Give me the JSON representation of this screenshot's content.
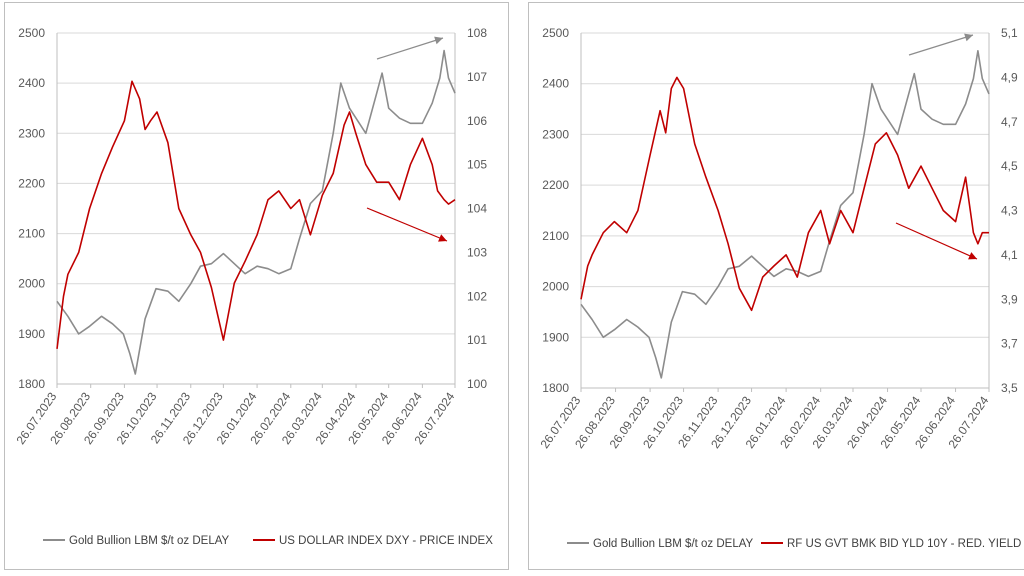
{
  "colors": {
    "gold": "#8c8c8c",
    "secondary": "#c00000",
    "grid": "#d9d9d9",
    "axis": "#bfbfbf"
  },
  "chart_data": [
    {
      "type": "line",
      "title": "",
      "x_tick_labels": [
        "26.07.2023",
        "26.08.2023",
        "26.09.2023",
        "26.10.2023",
        "26.11.2023",
        "26.12.2023",
        "26.01.2024",
        "26.02.2024",
        "26.03.2024",
        "26.04.2024",
        "26.05.2024",
        "26.06.2024",
        "26.07.2024"
      ],
      "y_left": {
        "range": [
          1800,
          2500
        ],
        "ticks": [
          "1800",
          "1900",
          "2000",
          "2100",
          "2200",
          "2300",
          "2400",
          "2500"
        ]
      },
      "y_right": {
        "range": [
          100,
          108
        ],
        "ticks": [
          "100",
          "101",
          "102",
          "103",
          "104",
          "105",
          "106",
          "107",
          "108"
        ]
      },
      "grid": true,
      "legend_position": "bottom",
      "series": [
        {
          "name": "Gold Bullion LBM $/t oz DELAY",
          "axis": "left",
          "color": "#8c8c8c",
          "x": [
            "26.07.2023",
            "05.08.2023",
            "15.08.2023",
            "25.08.2023",
            "05.09.2023",
            "15.09.2023",
            "25.09.2023",
            "01.10.2023",
            "06.10.2023",
            "15.10.2023",
            "25.10.2023",
            "05.11.2023",
            "15.11.2023",
            "26.11.2023",
            "05.12.2023",
            "15.12.2023",
            "26.12.2023",
            "05.01.2024",
            "15.01.2024",
            "26.01.2024",
            "05.02.2024",
            "15.02.2024",
            "26.02.2024",
            "05.03.2024",
            "15.03.2024",
            "26.03.2024",
            "05.04.2024",
            "12.04.2024",
            "20.04.2024",
            "26.04.2024",
            "05.05.2024",
            "15.05.2024",
            "20.05.2024",
            "26.05.2024",
            "05.06.2024",
            "15.06.2024",
            "26.06.2024",
            "05.07.2024",
            "12.07.2024",
            "16.07.2024",
            "20.07.2024",
            "26.07.2024"
          ],
          "y": [
            1965,
            1935,
            1900,
            1915,
            1935,
            1920,
            1900,
            1860,
            1820,
            1930,
            1990,
            1985,
            1965,
            2000,
            2035,
            2040,
            2060,
            2040,
            2020,
            2035,
            2030,
            2020,
            2030,
            2090,
            2160,
            2185,
            2300,
            2400,
            2350,
            2330,
            2300,
            2380,
            2420,
            2350,
            2330,
            2320,
            2320,
            2360,
            2410,
            2465,
            2410,
            2380
          ]
        },
        {
          "name": "US DOLLAR INDEX DXY - PRICE INDEX",
          "axis": "right",
          "color": "#c00000",
          "x": [
            "26.07.2023",
            "01.08.2023",
            "05.08.2023",
            "15.08.2023",
            "25.08.2023",
            "05.09.2023",
            "15.09.2023",
            "26.09.2023",
            "03.10.2023",
            "10.10.2023",
            "15.10.2023",
            "20.10.2023",
            "26.10.2023",
            "05.11.2023",
            "15.11.2023",
            "26.11.2023",
            "05.12.2023",
            "15.12.2023",
            "26.12.2023",
            "05.01.2024",
            "15.01.2024",
            "26.01.2024",
            "05.02.2024",
            "15.02.2024",
            "26.02.2024",
            "05.03.2024",
            "15.03.2024",
            "26.03.2024",
            "05.04.2024",
            "15.04.2024",
            "20.04.2024",
            "26.04.2024",
            "05.05.2024",
            "15.05.2024",
            "26.05.2024",
            "05.06.2024",
            "15.06.2024",
            "26.06.2024",
            "05.07.2024",
            "10.07.2024",
            "16.07.2024",
            "20.07.2024",
            "26.07.2024"
          ],
          "y": [
            100.8,
            102.0,
            102.5,
            103.0,
            104.0,
            104.8,
            105.4,
            106.0,
            106.9,
            106.5,
            105.8,
            106.0,
            106.2,
            105.5,
            104.0,
            103.4,
            103.0,
            102.2,
            101.0,
            102.3,
            102.8,
            103.4,
            104.2,
            104.4,
            104.0,
            104.2,
            103.4,
            104.3,
            104.8,
            105.9,
            106.2,
            105.7,
            105.0,
            104.6,
            104.6,
            104.2,
            105.0,
            105.6,
            105.0,
            104.4,
            104.2,
            104.1,
            104.2
          ]
        }
      ],
      "annotations": [
        {
          "type": "arrow",
          "color": "#8c8c8c",
          "direction": "up-right"
        },
        {
          "type": "arrow",
          "color": "#c00000",
          "direction": "down-right"
        }
      ]
    },
    {
      "type": "line",
      "title": "",
      "x_tick_labels": [
        "26.07.2023",
        "26.08.2023",
        "26.09.2023",
        "26.10.2023",
        "26.11.2023",
        "26.12.2023",
        "26.01.2024",
        "26.02.2024",
        "26.03.2024",
        "26.04.2024",
        "26.05.2024",
        "26.06.2024",
        "26.07.2024"
      ],
      "y_left": {
        "range": [
          1800,
          2500
        ],
        "ticks": [
          "1800",
          "1900",
          "2000",
          "2100",
          "2200",
          "2300",
          "2400",
          "2500"
        ]
      },
      "y_right": {
        "range": [
          3.5,
          5.1
        ],
        "ticks": [
          "3,5",
          "3,7",
          "3,9",
          "4,1",
          "4,3",
          "4,5",
          "4,7",
          "4,9",
          "5,1"
        ]
      },
      "grid": true,
      "legend_position": "bottom",
      "series": [
        {
          "name": "Gold Bullion LBM $/t oz DELAY",
          "axis": "left",
          "color": "#8c8c8c",
          "x": [
            "26.07.2023",
            "05.08.2023",
            "15.08.2023",
            "25.08.2023",
            "05.09.2023",
            "15.09.2023",
            "25.09.2023",
            "01.10.2023",
            "06.10.2023",
            "15.10.2023",
            "25.10.2023",
            "05.11.2023",
            "15.11.2023",
            "26.11.2023",
            "05.12.2023",
            "15.12.2023",
            "26.12.2023",
            "05.01.2024",
            "15.01.2024",
            "26.01.2024",
            "05.02.2024",
            "15.02.2024",
            "26.02.2024",
            "05.03.2024",
            "15.03.2024",
            "26.03.2024",
            "05.04.2024",
            "12.04.2024",
            "20.04.2024",
            "26.04.2024",
            "05.05.2024",
            "15.05.2024",
            "20.05.2024",
            "26.05.2024",
            "05.06.2024",
            "15.06.2024",
            "26.06.2024",
            "05.07.2024",
            "12.07.2024",
            "16.07.2024",
            "20.07.2024",
            "26.07.2024"
          ],
          "y": [
            1965,
            1935,
            1900,
            1915,
            1935,
            1920,
            1900,
            1860,
            1820,
            1930,
            1990,
            1985,
            1965,
            2000,
            2035,
            2040,
            2060,
            2040,
            2020,
            2035,
            2030,
            2020,
            2030,
            2090,
            2160,
            2185,
            2300,
            2400,
            2350,
            2330,
            2300,
            2380,
            2420,
            2350,
            2330,
            2320,
            2320,
            2360,
            2410,
            2465,
            2410,
            2380
          ]
        },
        {
          "name": "RF US GVT BMK BID YLD 10Y - RED. YIELD",
          "axis": "right",
          "color": "#c00000",
          "x": [
            "26.07.2023",
            "01.08.2023",
            "05.08.2023",
            "15.08.2023",
            "25.08.2023",
            "05.09.2023",
            "15.09.2023",
            "26.09.2023",
            "05.10.2023",
            "10.10.2023",
            "15.10.2023",
            "20.10.2023",
            "26.10.2023",
            "05.11.2023",
            "15.11.2023",
            "26.11.2023",
            "05.12.2023",
            "15.12.2023",
            "26.12.2023",
            "05.01.2024",
            "15.01.2024",
            "26.01.2024",
            "05.02.2024",
            "15.02.2024",
            "26.02.2024",
            "05.03.2024",
            "15.03.2024",
            "26.03.2024",
            "05.04.2024",
            "15.04.2024",
            "25.04.2024",
            "05.05.2024",
            "15.05.2024",
            "26.05.2024",
            "05.06.2024",
            "15.06.2024",
            "26.06.2024",
            "05.07.2024",
            "12.07.2024",
            "16.07.2024",
            "20.07.2024",
            "26.07.2024"
          ],
          "y": [
            3.9,
            4.05,
            4.1,
            4.2,
            4.25,
            4.2,
            4.3,
            4.55,
            4.75,
            4.65,
            4.85,
            4.9,
            4.85,
            4.6,
            4.45,
            4.3,
            4.15,
            3.95,
            3.85,
            4.0,
            4.05,
            4.1,
            4.0,
            4.2,
            4.3,
            4.15,
            4.3,
            4.2,
            4.4,
            4.6,
            4.65,
            4.55,
            4.4,
            4.5,
            4.4,
            4.3,
            4.25,
            4.45,
            4.2,
            4.15,
            4.2,
            4.2
          ]
        }
      ],
      "annotations": [
        {
          "type": "arrow",
          "color": "#8c8c8c",
          "direction": "up-right"
        },
        {
          "type": "arrow",
          "color": "#c00000",
          "direction": "down-right"
        }
      ]
    }
  ]
}
